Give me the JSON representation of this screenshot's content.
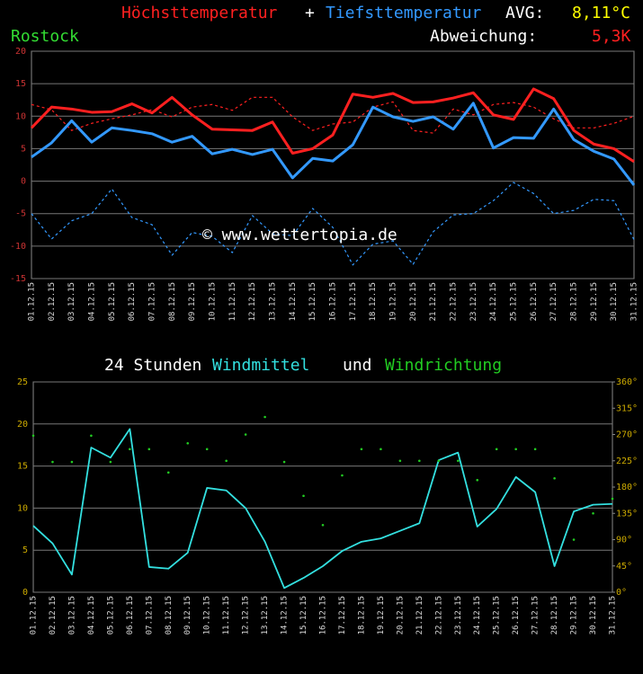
{
  "chart_data": [
    {
      "type": "line",
      "joiner": "+",
      "avg_label": "AVG:",
      "avg_value": "8,11°C",
      "location": "Rostock",
      "deviation_label": "Abweichung:",
      "deviation_value": "5,3K",
      "watermark": "© www.wettertopia.de",
      "categories": [
        "01.12.15",
        "02.12.15",
        "03.12.15",
        "04.12.15",
        "05.12.15",
        "06.12.15",
        "07.12.15",
        "08.12.15",
        "09.12.15",
        "10.12.15",
        "11.12.15",
        "12.12.15",
        "13.12.15",
        "14.12.15",
        "15.12.15",
        "16.12.15",
        "17.12.15",
        "18.12.15",
        "19.12.15",
        "20.12.15",
        "21.12.15",
        "22.12.15",
        "23.12.15",
        "24.12.15",
        "25.12.15",
        "26.12.15",
        "27.12.15",
        "28.12.15",
        "29.12.15",
        "30.12.15",
        "31.12.15"
      ],
      "ylim": [
        -15,
        20
      ],
      "yticks": [
        -15,
        -10,
        -5,
        0,
        5,
        10,
        15,
        20
      ],
      "grid": true,
      "series": [
        {
          "color": "#ff2020",
          "dashed": true,
          "values": [
            11.8,
            11,
            7.8,
            8.9,
            9.6,
            10.2,
            11,
            9.9,
            11.4,
            11.8,
            10.9,
            12.9,
            12.9,
            9.9,
            7.8,
            8.8,
            9.1,
            11.4,
            12.2,
            7.8,
            7.4,
            11.1,
            10.2,
            11.8,
            12.1,
            11.4,
            9.6,
            8.2,
            8.2,
            8.9,
            10
          ]
        },
        {
          "color": "#3399ff",
          "dashed": true,
          "values": [
            -5,
            -8.9,
            -6.1,
            -5,
            -1.2,
            -5.6,
            -6.7,
            -11.4,
            -7.9,
            -8.5,
            -11,
            -5.3,
            -8.1,
            -8.4,
            -4.2,
            -7.1,
            -12.9,
            -9.7,
            -9.2,
            -12.8,
            -7.8,
            -5.2,
            -5,
            -3,
            -0.2,
            -1.9,
            -5,
            -4.5,
            -2.8,
            -3,
            -9
          ]
        },
        {
          "name": "Höchsttemperatur",
          "color": "#ff2020",
          "values": [
            8.2,
            11.4,
            11.1,
            10.6,
            10.7,
            11.9,
            10.5,
            12.9,
            10.2,
            8,
            7.9,
            7.8,
            9.1,
            4.3,
            5,
            7.1,
            13.4,
            12.9,
            13.5,
            12.1,
            12.2,
            12.8,
            13.6,
            10.2,
            9.5,
            14.2,
            12.7,
            7.8,
            5.7,
            5,
            3
          ]
        },
        {
          "name": "Tiefsttemperatur",
          "color": "#3399ff",
          "values": [
            3.7,
            5.9,
            9.3,
            6,
            8.2,
            7.8,
            7.3,
            6,
            6.9,
            4.2,
            4.9,
            4.1,
            4.9,
            0.5,
            3.5,
            3.1,
            5.6,
            11.4,
            9.9,
            9.2,
            9.9,
            8,
            12,
            5.1,
            6.7,
            6.6,
            11.1,
            6.4,
            4.6,
            3.4,
            -0.6
          ]
        }
      ]
    },
    {
      "type": "line",
      "title_prefix": "24 Stunden",
      "title_joiner": "und",
      "categories": [
        "01.12.15",
        "02.12.15",
        "03.12.15",
        "04.12.15",
        "05.12.15",
        "06.12.15",
        "07.12.15",
        "08.12.15",
        "09.12.15",
        "10.12.15",
        "11.12.15",
        "12.12.15",
        "13.12.15",
        "14.12.15",
        "15.12.15",
        "16.12.15",
        "17.12.15",
        "18.12.15",
        "19.12.15",
        "20.12.15",
        "21.12.15",
        "22.12.15",
        "23.12.15",
        "24.12.15",
        "25.12.15",
        "26.12.15",
        "27.12.15",
        "28.12.15",
        "29.12.15",
        "30.12.15",
        "31.12.15"
      ],
      "ylim": [
        0,
        25
      ],
      "yticks": [
        0,
        5,
        10,
        15,
        20,
        25
      ],
      "y2lim": [
        0,
        360
      ],
      "y2ticks": [
        {
          "value": 0,
          "label": "0°"
        },
        {
          "value": 45,
          "label": "45°"
        },
        {
          "value": 90,
          "label": "90°"
        },
        {
          "value": 135,
          "label": "135°"
        },
        {
          "value": 180,
          "label": "180°"
        },
        {
          "value": 225,
          "label": "225°"
        },
        {
          "value": 270,
          "label": "270°"
        },
        {
          "value": 315,
          "label": "315°"
        },
        {
          "value": 360,
          "label": "360°"
        }
      ],
      "grid": true,
      "series": [
        {
          "name": "Windmittel",
          "color": "#33e0e0",
          "values": [
            7.9,
            5.8,
            2.1,
            17.2,
            16,
            19.4,
            3,
            2.8,
            4.7,
            12.4,
            12.1,
            10,
            6,
            0.5,
            1.7,
            3.1,
            4.9,
            6,
            6.4,
            7.3,
            8.2,
            15.7,
            16.6,
            7.8,
            9.9,
            13.7,
            11.9,
            3.1,
            9.6,
            10.4,
            10.5
          ]
        },
        {
          "name": "Windrichtung",
          "color": "#22cc22",
          "axis": "y2",
          "markers_only": true,
          "values": [
            268,
            223,
            223,
            268,
            223,
            245,
            245,
            205,
            255,
            245,
            225,
            270,
            300,
            223,
            165,
            115,
            200,
            245,
            245,
            225,
            225,
            225,
            225,
            192,
            245,
            245,
            245,
            195,
            90,
            135,
            160
          ]
        }
      ]
    }
  ]
}
